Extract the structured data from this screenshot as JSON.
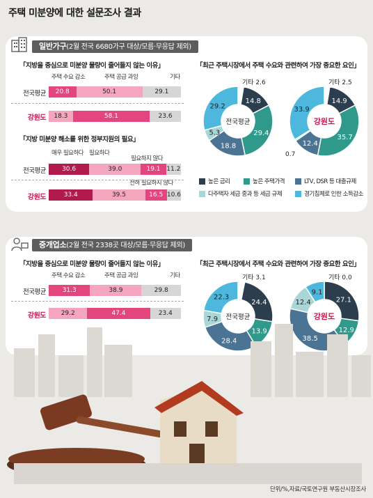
{
  "title": "주택 미분양에 대한 설문조사 결과",
  "source": "단위/%,자료/국토연구원 부동산시장조사",
  "colors": {
    "darkpink": "#b11a4c",
    "pink": "#e3467e",
    "lightpink": "#f3a6bd",
    "gray": "#d6d6d6",
    "navy": "#2c3e4e",
    "teal": "#2f9a8c",
    "steel": "#4a7394",
    "lightteal": "#a9d7d8",
    "sky": "#4db7de"
  },
  "section1": {
    "label_bold": "일반가구",
    "label_rest": "(2월 전국 6680가구 대상/모름·무응답 제외)",
    "q1": "「지방을 중심으로 미분양 물량이 줄어들지 않는 이유」",
    "q1_cat": [
      "주택 수요 감소",
      "주택 공급 과잉",
      "기타"
    ],
    "q1_rows": [
      {
        "label": "전국평균",
        "values": [
          "20.8",
          "50.1",
          "29.1"
        ]
      },
      {
        "label": "강원도",
        "values": [
          "18.3",
          "58.1",
          "23.6"
        ]
      }
    ],
    "q2": "「지방 미분양 해소를 위한 정부지원의 필요」",
    "q2_cat": [
      "매우 필요하다",
      "필요하다",
      "필요하지 않다",
      "전혀 필요하지 않다"
    ],
    "q2_rows": [
      {
        "label": "전국평균",
        "values": [
          "30.6",
          "39.0",
          "19.1",
          "11.2"
        ]
      },
      {
        "label": "강원도",
        "values": [
          "33.4",
          "39.5",
          "16.5",
          "10.6"
        ]
      }
    ],
    "q3": "「최근 주택시장에서 주택 수요와 관련하여 가장 중요한 요인」",
    "donut1_center": "전국평균",
    "donut1_other": "기타 2.6",
    "donut1_values": [
      "14.8",
      "29.4",
      "18.8",
      "5.3",
      "29.2"
    ],
    "donut2_center": "강원도",
    "donut2_other": "기타 2.5",
    "donut2_values": [
      "14.9",
      "35.7",
      "12.4",
      "0.7",
      "33.9"
    ],
    "legend": [
      "높은 금리",
      "높은 주택가격",
      "LTV, DSR 등 대출규제",
      "다주택자 세금 중과 등 세금 규제",
      "경기침체로 인한 소득감소"
    ]
  },
  "section2": {
    "label_bold": "중개업소",
    "label_rest": "(2월 전국 2338곳 대상/모름·무응답 제외)",
    "q1": "「지방을 중심으로 미분양 물량이 줄어들지 않는 이유」",
    "q1_cat": [
      "주택 수요 감소",
      "주택 공급 과잉",
      "기타"
    ],
    "q1_rows": [
      {
        "label": "전국평균",
        "values": [
          "31.3",
          "38.9",
          "29.8"
        ]
      },
      {
        "label": "강원도",
        "values": [
          "29.2",
          "47.4",
          "23.4"
        ]
      }
    ],
    "q3": "「최근 주택시장에서 주택 수요와 관련하여 가장 중요한 요인」",
    "donut1_center": "전국평균",
    "donut1_other": "기타 3.1",
    "donut1_values": [
      "24.4",
      "13.9",
      "28.4",
      "7.9",
      "22.3"
    ],
    "donut2_center": "강원도",
    "donut2_other": "기타 0.0",
    "donut2_values": [
      "27.1",
      "12.9",
      "38.5",
      "12.4",
      "9.1"
    ]
  },
  "chart_data": [
    {
      "type": "bar",
      "title": "지방을 중심으로 미분양 물량이 줄어들지 않는 이유 (일반가구)",
      "categories": [
        "전국평균",
        "강원도"
      ],
      "series": [
        {
          "name": "주택 수요 감소",
          "values": [
            20.8,
            18.3
          ]
        },
        {
          "name": "주택 공급 과잉",
          "values": [
            50.1,
            58.1
          ]
        },
        {
          "name": "기타",
          "values": [
            29.1,
            23.6
          ]
        }
      ]
    },
    {
      "type": "bar",
      "title": "지방 미분양 해소를 위한 정부지원의 필요 (일반가구)",
      "categories": [
        "전국평균",
        "강원도"
      ],
      "series": [
        {
          "name": "매우 필요하다",
          "values": [
            30.6,
            33.4
          ]
        },
        {
          "name": "필요하다",
          "values": [
            39.0,
            39.5
          ]
        },
        {
          "name": "필요하지 않다",
          "values": [
            19.1,
            16.5
          ]
        },
        {
          "name": "전혀 필요하지 않다",
          "values": [
            11.2,
            10.6
          ]
        }
      ]
    },
    {
      "type": "pie",
      "title": "최근 주택시장에서 주택 수요와 관련하여 가장 중요한 요인 (일반가구 전국평균)",
      "labels": [
        "높은 금리",
        "높은 주택가격",
        "LTV, DSR 등 대출규제",
        "다주택자 세금 중과 등 세금 규제",
        "경기침체로 인한 소득감소",
        "기타"
      ],
      "values": [
        14.8,
        29.4,
        18.8,
        5.3,
        29.2,
        2.6
      ]
    },
    {
      "type": "pie",
      "title": "최근 주택시장에서 주택 수요와 관련하여 가장 중요한 요인 (일반가구 강원도)",
      "labels": [
        "높은 금리",
        "높은 주택가격",
        "LTV, DSR 등 대출규제",
        "다주택자 세금 중과 등 세금 규제",
        "경기침체로 인한 소득감소",
        "기타"
      ],
      "values": [
        14.9,
        35.7,
        12.4,
        0.7,
        33.9,
        2.5
      ]
    },
    {
      "type": "bar",
      "title": "지방을 중심으로 미분양 물량이 줄어들지 않는 이유 (중개업소)",
      "categories": [
        "전국평균",
        "강원도"
      ],
      "series": [
        {
          "name": "주택 수요 감소",
          "values": [
            31.3,
            29.2
          ]
        },
        {
          "name": "주택 공급 과잉",
          "values": [
            38.9,
            47.4
          ]
        },
        {
          "name": "기타",
          "values": [
            29.8,
            23.4
          ]
        }
      ]
    },
    {
      "type": "pie",
      "title": "최근 주택시장에서 주택 수요와 관련하여 가장 중요한 요인 (중개업소 전국평균)",
      "labels": [
        "높은 금리",
        "높은 주택가격",
        "LTV, DSR 등 대출규제",
        "다주택자 세금 중과 등 세금 규제",
        "경기침체로 인한 소득감소",
        "기타"
      ],
      "values": [
        24.4,
        13.9,
        28.4,
        7.9,
        22.3,
        3.1
      ]
    },
    {
      "type": "pie",
      "title": "최근 주택시장에서 주택 수요와 관련하여 가장 중요한 요인 (중개업소 강원도)",
      "labels": [
        "높은 금리",
        "높은 주택가격",
        "LTV, DSR 등 대출규제",
        "다주택자 세금 중과 등 세금 규제",
        "경기침체로 인한 소득감소",
        "기타"
      ],
      "values": [
        27.1,
        12.9,
        38.5,
        12.4,
        9.1,
        0.0
      ]
    }
  ]
}
